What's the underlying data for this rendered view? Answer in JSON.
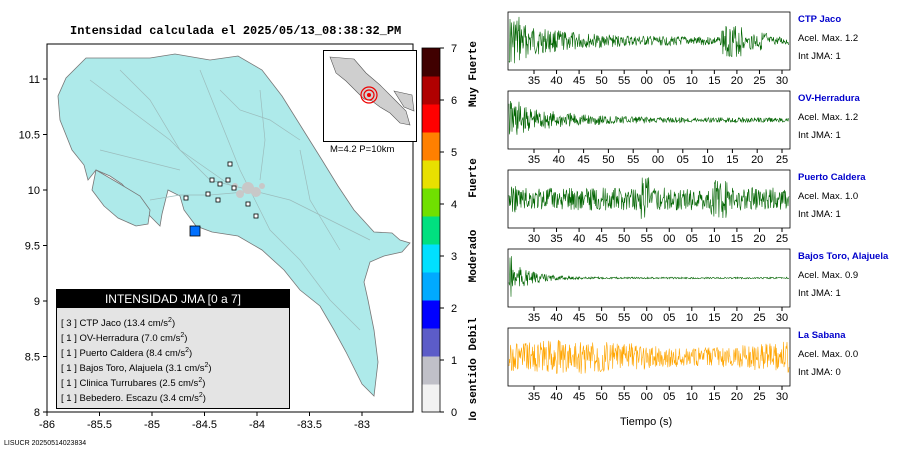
{
  "title": "Intensidad calculada el 2025/05/13_08:38:32_PM",
  "footer": "LISUCR 20250514023834",
  "map": {
    "x_ticks": [
      "-86",
      "-85.5",
      "-85",
      "-84.5",
      "-84",
      "-83.5",
      "-83"
    ],
    "y_ticks": [
      "11",
      "10.5",
      "10",
      "9.5",
      "9",
      "8.5",
      "8"
    ],
    "inset_label": "M=4.2 P=10km"
  },
  "legend": {
    "header": "INTENSIDAD JMA [0 a 7]",
    "rows": [
      {
        "level": "[ 3 ]",
        "name": "CTP Jaco",
        "value": "13.4"
      },
      {
        "level": "[ 1 ]",
        "name": "OV-Herradura",
        "value": "7.0"
      },
      {
        "level": "[ 1 ]",
        "name": "Puerto Caldera",
        "value": "8.4"
      },
      {
        "level": "[ 1 ]",
        "name": "Bajos Toro, Alajuela",
        "value": "3.1"
      },
      {
        "level": "[ 1 ]",
        "name": "Clinica Turrubares",
        "value": "2.5"
      },
      {
        "level": "[ 1 ]",
        "name": "Bebedero. Escazu",
        "value": "3.4"
      }
    ],
    "unit": "cm/s",
    "unit_exp": "2"
  },
  "scale": {
    "ticks": [
      "7",
      "6",
      "5",
      "4",
      "3",
      "2",
      "1",
      "0"
    ],
    "labels": [
      "Muy Fuerte",
      "Fuerte",
      "Moderado",
      "Debil",
      "No sentido"
    ],
    "colors": [
      "#f2f2f2",
      "#c0c0c8",
      "#5c5cc8",
      "#0000ff",
      "#00aaff",
      "#00e0ff",
      "#00e080",
      "#70e000",
      "#e8e000",
      "#ff8000",
      "#ff0000",
      "#b00000",
      "#400000"
    ]
  },
  "chart_data": {
    "type": "line",
    "xlabel": "Tiempo (s)",
    "stations": [
      {
        "name": "CTP Jaco",
        "acel_label": "Acel. Max.",
        "acel": "1.2",
        "int_label": "Int JMA:",
        "int": "1",
        "color": "#006400",
        "x_ticks": [
          "35",
          "40",
          "45",
          "50",
          "55",
          "00",
          "05",
          "10",
          "15",
          "20",
          "25",
          "30"
        ]
      },
      {
        "name": "OV-Herradura",
        "acel_label": "Acel. Max.",
        "acel": "1.2",
        "int_label": "Int JMA:",
        "int": "1",
        "color": "#006400",
        "x_ticks": [
          "35",
          "40",
          "45",
          "50",
          "55",
          "00",
          "05",
          "10",
          "15",
          "20",
          "25"
        ]
      },
      {
        "name": "Puerto Caldera",
        "acel_label": "Acel. Max.",
        "acel": "1.0",
        "int_label": "Int JMA:",
        "int": "1",
        "color": "#006400",
        "x_ticks": [
          "30",
          "35",
          "40",
          "45",
          "50",
          "55",
          "00",
          "05",
          "10",
          "15",
          "20",
          "25"
        ]
      },
      {
        "name": "Bajos Toro, Alajuela",
        "acel_label": "Acel. Max.",
        "acel": "0.9",
        "int_label": "Int JMA:",
        "int": "1",
        "color": "#006400",
        "x_ticks": [
          "35",
          "40",
          "45",
          "50",
          "55",
          "00",
          "05",
          "10",
          "15",
          "20",
          "25",
          "30"
        ]
      },
      {
        "name": "La Sabana",
        "acel_label": "Acel. Max.",
        "acel": "0.0",
        "int_label": "Int JMA:",
        "int": "0",
        "color": "#ffa500",
        "x_ticks": [
          "35",
          "40",
          "45",
          "50",
          "55",
          "00",
          "05",
          "10",
          "15",
          "20",
          "25",
          "30"
        ]
      }
    ]
  }
}
